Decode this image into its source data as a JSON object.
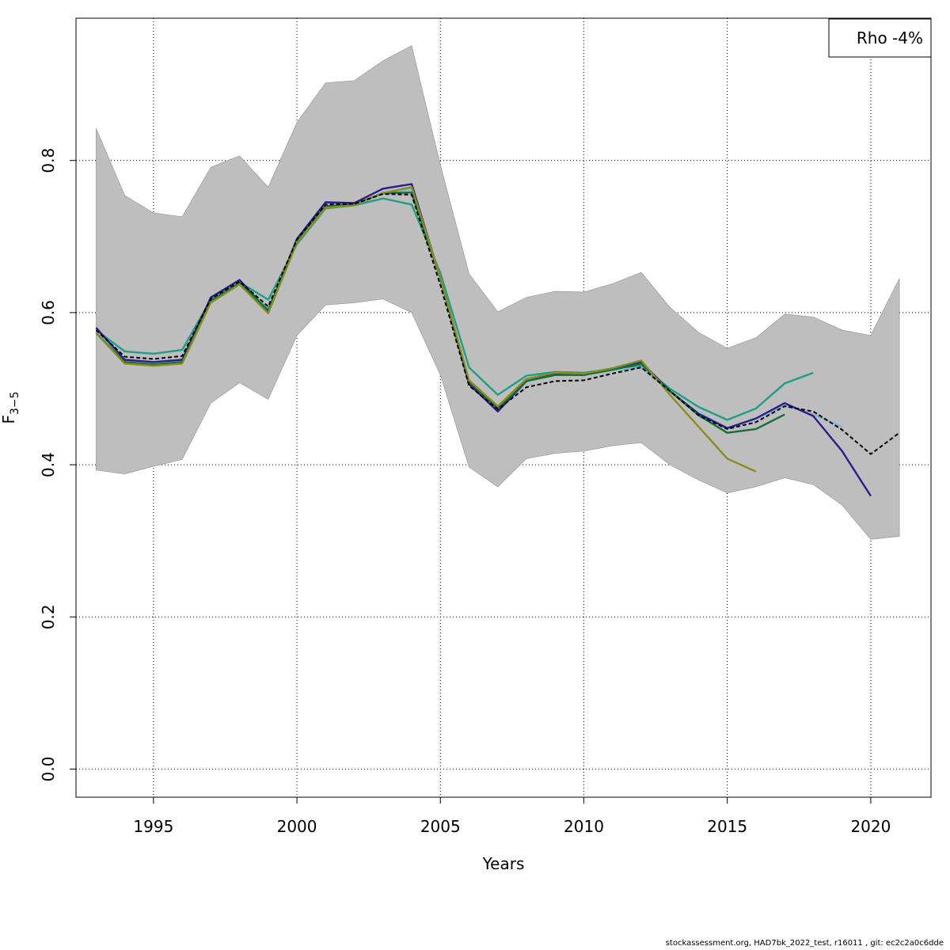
{
  "chart_data": {
    "type": "line",
    "xlabel": "Years",
    "ylabel_main": "F",
    "ylabel_sub": "3−5",
    "xlim": [
      1992.3,
      2022.1
    ],
    "ylim": [
      -0.037,
      0.987
    ],
    "xticks": [
      "1995",
      "2000",
      "2005",
      "2010",
      "2015",
      "2020"
    ],
    "yticks": [
      "0.0",
      "0.2",
      "0.4",
      "0.6",
      "0.8"
    ],
    "grid": true,
    "legend": {
      "position": "top-right",
      "text": "Rho -4%"
    },
    "confidence_band": {
      "color": "#bebebe",
      "x": [
        1993,
        1994,
        1995,
        1996,
        1997,
        1998,
        1999,
        2000,
        2001,
        2002,
        2003,
        2004,
        2005,
        2006,
        2007,
        2008,
        2009,
        2010,
        2011,
        2012,
        2013,
        2014,
        2015,
        2016,
        2017,
        2018,
        2019,
        2020,
        2021
      ],
      "upper": [
        0.842,
        0.754,
        0.731,
        0.726,
        0.791,
        0.806,
        0.765,
        0.85,
        0.902,
        0.905,
        0.931,
        0.951,
        0.794,
        0.651,
        0.601,
        0.62,
        0.628,
        0.627,
        0.638,
        0.653,
        0.607,
        0.574,
        0.553,
        0.567,
        0.598,
        0.594,
        0.577,
        0.57,
        0.645
      ],
      "lower": [
        0.393,
        0.388,
        0.398,
        0.407,
        0.481,
        0.508,
        0.486,
        0.57,
        0.61,
        0.613,
        0.618,
        0.6,
        0.518,
        0.397,
        0.371,
        0.408,
        0.415,
        0.418,
        0.425,
        0.429,
        0.4,
        0.38,
        0.363,
        0.371,
        0.383,
        0.374,
        0.347,
        0.302,
        0.306
      ]
    },
    "series": [
      {
        "color": "#1f9e89",
        "dash": false,
        "x": [
          1993,
          1994,
          1995,
          1996,
          1997,
          1998,
          1999,
          2000,
          2001,
          2002,
          2003,
          2004,
          2005,
          2006,
          2007,
          2008,
          2009,
          2010,
          2011,
          2012,
          2013,
          2014,
          2015,
          2016,
          2017,
          2018
        ],
        "values": [
          0.577,
          0.549,
          0.546,
          0.551,
          0.617,
          0.64,
          0.617,
          0.69,
          0.737,
          0.741,
          0.75,
          0.742,
          0.652,
          0.528,
          0.492,
          0.517,
          0.522,
          0.521,
          0.526,
          0.53,
          0.5,
          0.476,
          0.459,
          0.474,
          0.507,
          0.521
        ]
      },
      {
        "color": "#7db5d8",
        "dash": false,
        "x": [
          1993,
          1994,
          1995,
          1996,
          1997,
          1998,
          1999,
          2000,
          2001,
          2002,
          2003,
          2004,
          2005,
          2006,
          2007,
          2008,
          2009,
          2010,
          2011,
          2012,
          2013,
          2014,
          2015,
          2016,
          2017,
          2018,
          2019
        ],
        "values": [
          0.575,
          0.538,
          0.535,
          0.538,
          0.615,
          0.64,
          0.605,
          0.695,
          0.742,
          0.742,
          0.758,
          0.762,
          0.645,
          0.51,
          0.474,
          0.511,
          0.519,
          0.518,
          0.524,
          0.528,
          0.496,
          0.468,
          0.449,
          0.46,
          0.478,
          0.466,
          0.45
        ]
      },
      {
        "color": "#2c1d8a",
        "dash": false,
        "x": [
          1993,
          1994,
          1995,
          1996,
          1997,
          1998,
          1999,
          2000,
          2001,
          2002,
          2003,
          2004,
          2005,
          2006,
          2007,
          2008,
          2009,
          2010,
          2011,
          2012,
          2013,
          2014,
          2015,
          2016,
          2017,
          2018,
          2019,
          2020
        ],
        "values": [
          0.58,
          0.538,
          0.535,
          0.538,
          0.62,
          0.643,
          0.601,
          0.697,
          0.745,
          0.744,
          0.763,
          0.769,
          0.645,
          0.506,
          0.47,
          0.51,
          0.519,
          0.518,
          0.526,
          0.535,
          0.497,
          0.467,
          0.448,
          0.461,
          0.481,
          0.464,
          0.418,
          0.359
        ]
      },
      {
        "color": "#11703a",
        "dash": false,
        "x": [
          1993,
          1994,
          1995,
          1996,
          1997,
          1998,
          1999,
          2000,
          2001,
          2002,
          2003,
          2004,
          2005,
          2006,
          2007,
          2008,
          2009,
          2010,
          2011,
          2012,
          2013,
          2014,
          2015,
          2016,
          2017
        ],
        "values": [
          0.573,
          0.535,
          0.532,
          0.535,
          0.615,
          0.639,
          0.603,
          0.694,
          0.74,
          0.742,
          0.757,
          0.758,
          0.645,
          0.509,
          0.474,
          0.51,
          0.518,
          0.518,
          0.525,
          0.533,
          0.497,
          0.465,
          0.442,
          0.447,
          0.466
        ]
      },
      {
        "color": "#8c8c1e",
        "dash": false,
        "x": [
          1993,
          1994,
          1995,
          1996,
          1997,
          1998,
          1999,
          2000,
          2001,
          2002,
          2003,
          2004,
          2005,
          2006,
          2007,
          2008,
          2009,
          2010,
          2011,
          2012,
          2013,
          2014,
          2015,
          2016
        ],
        "values": [
          0.573,
          0.533,
          0.53,
          0.533,
          0.613,
          0.637,
          0.599,
          0.692,
          0.738,
          0.741,
          0.757,
          0.765,
          0.646,
          0.511,
          0.477,
          0.513,
          0.521,
          0.52,
          0.527,
          0.537,
          0.492,
          0.45,
          0.408,
          0.391
        ]
      },
      {
        "color": "#000000",
        "dash": true,
        "x": [
          1993,
          1994,
          1995,
          1996,
          1997,
          1998,
          1999,
          2000,
          2001,
          2002,
          2003,
          2004,
          2005,
          2006,
          2007,
          2008,
          2009,
          2010,
          2011,
          2012,
          2013,
          2014,
          2015,
          2016,
          2017,
          2018,
          2019,
          2020,
          2021
        ],
        "values": [
          0.577,
          0.542,
          0.539,
          0.543,
          0.618,
          0.641,
          0.608,
          0.696,
          0.742,
          0.743,
          0.756,
          0.755,
          0.636,
          0.504,
          0.473,
          0.502,
          0.51,
          0.511,
          0.52,
          0.528,
          0.497,
          0.465,
          0.447,
          0.456,
          0.477,
          0.47,
          0.446,
          0.414,
          0.442
        ]
      }
    ]
  },
  "footer": "stockassessment.org, HAD7bk_2022_test, r16011 , git: ec2c2a0c6dde"
}
